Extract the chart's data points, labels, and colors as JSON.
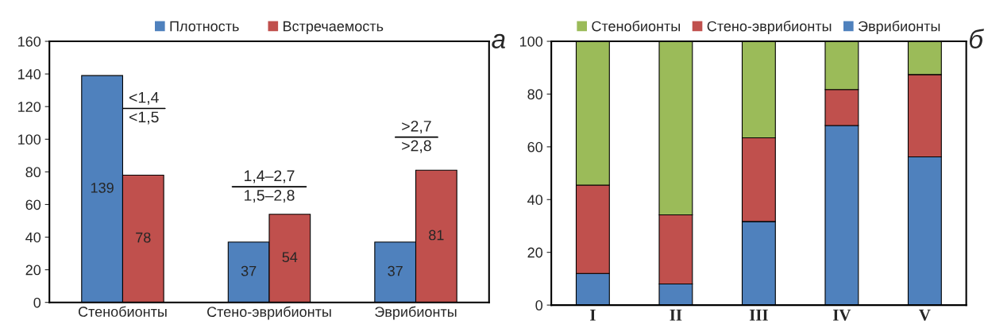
{
  "chart_data": [
    {
      "type": "bar",
      "categories": [
        "Стенобионты",
        "Стено-эврибионты",
        "Эврибионты"
      ],
      "series": [
        {
          "name": "Плотность",
          "color": "#4f81bd",
          "values": [
            139,
            37,
            37
          ]
        },
        {
          "name": "Встречаемость",
          "color": "#c0504d",
          "values": [
            78,
            54,
            81
          ]
        }
      ],
      "ylim": [
        0,
        160
      ],
      "yticks": [
        0,
        20,
        40,
        60,
        80,
        100,
        120,
        140,
        160
      ],
      "data_labels": true,
      "legend": "top",
      "grid": false,
      "annotations": [
        "а",
        "<1,4",
        "<1,5",
        "1,4–2,7",
        "1,5–2,8",
        ">2,7",
        ">2,8"
      ]
    },
    {
      "type": "bar",
      "stacked": true,
      "categories": [
        "I",
        "II",
        "III",
        "IV",
        "V"
      ],
      "series": [
        {
          "name": "Эврибионты",
          "color": "#4f81bd",
          "values": [
            12,
            8,
            31.7,
            68.1,
            56.2
          ]
        },
        {
          "name": "Стено-эврибионты",
          "color": "#c0504d",
          "values": [
            33.5,
            26.2,
            31.7,
            13.6,
            31.2
          ]
        },
        {
          "name": "Стенобионты",
          "color": "#9bbb59",
          "values": [
            54.5,
            65.8,
            36.6,
            18.3,
            12.6
          ]
        }
      ],
      "ylim": [
        0,
        100
      ],
      "yticks": [
        0,
        20,
        40,
        60,
        80,
        100
      ],
      "legend": "top",
      "grid": false,
      "annotations": [
        "б"
      ]
    }
  ]
}
